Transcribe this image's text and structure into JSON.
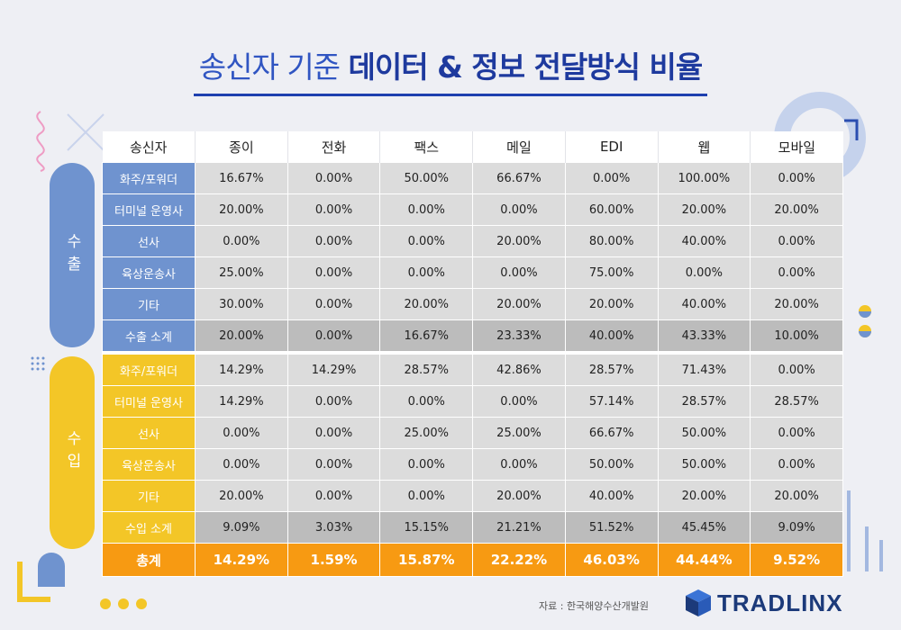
{
  "title": {
    "light": "송신자 기준",
    "bold": "데이터 & 정보 전달방식 비율"
  },
  "groups": {
    "export": "수출",
    "import": "수입"
  },
  "headers": [
    "송신자",
    "종이",
    "전화",
    "팩스",
    "메일",
    "EDI",
    "웹",
    "모바일"
  ],
  "rows": [
    {
      "label": "화주/포워더",
      "values": [
        "16.67%",
        "0.00%",
        "50.00%",
        "66.67%",
        "0.00%",
        "100.00%",
        "0.00%"
      ]
    },
    {
      "label": "터미널 운영사",
      "values": [
        "20.00%",
        "0.00%",
        "0.00%",
        "0.00%",
        "60.00%",
        "20.00%",
        "20.00%"
      ]
    },
    {
      "label": "선사",
      "values": [
        "0.00%",
        "0.00%",
        "0.00%",
        "20.00%",
        "80.00%",
        "40.00%",
        "0.00%"
      ]
    },
    {
      "label": "육상운송사",
      "values": [
        "25.00%",
        "0.00%",
        "0.00%",
        "0.00%",
        "75.00%",
        "0.00%",
        "0.00%"
      ]
    },
    {
      "label": "기타",
      "values": [
        "30.00%",
        "0.00%",
        "20.00%",
        "20.00%",
        "20.00%",
        "40.00%",
        "20.00%"
      ]
    },
    {
      "label": "수출 소계",
      "values": [
        "20.00%",
        "0.00%",
        "16.67%",
        "23.33%",
        "40.00%",
        "43.33%",
        "10.00%"
      ]
    },
    {
      "label": "화주/포워더",
      "values": [
        "14.29%",
        "14.29%",
        "28.57%",
        "42.86%",
        "28.57%",
        "71.43%",
        "0.00%"
      ]
    },
    {
      "label": "터미널 운영사",
      "values": [
        "14.29%",
        "0.00%",
        "0.00%",
        "0.00%",
        "57.14%",
        "28.57%",
        "28.57%"
      ]
    },
    {
      "label": "선사",
      "values": [
        "0.00%",
        "0.00%",
        "25.00%",
        "25.00%",
        "66.67%",
        "50.00%",
        "0.00%"
      ]
    },
    {
      "label": "육상운송사",
      "values": [
        "0.00%",
        "0.00%",
        "0.00%",
        "0.00%",
        "50.00%",
        "50.00%",
        "0.00%"
      ]
    },
    {
      "label": "기타",
      "values": [
        "20.00%",
        "0.00%",
        "0.00%",
        "20.00%",
        "40.00%",
        "20.00%",
        "20.00%"
      ]
    },
    {
      "label": "수입 소계",
      "values": [
        "9.09%",
        "3.03%",
        "15.15%",
        "21.21%",
        "51.52%",
        "45.45%",
        "9.09%"
      ]
    }
  ],
  "total": {
    "label": "총계",
    "values": [
      "14.29%",
      "1.59%",
      "15.87%",
      "22.22%",
      "46.03%",
      "44.44%",
      "9.52%"
    ]
  },
  "source": "자료 : 한국해양수산개발원",
  "logo": "TRADLINX",
  "colors": {
    "export": "#6f93cf",
    "import": "#f3c627",
    "total": "#f79a12",
    "title": "#1e3a9e"
  }
}
